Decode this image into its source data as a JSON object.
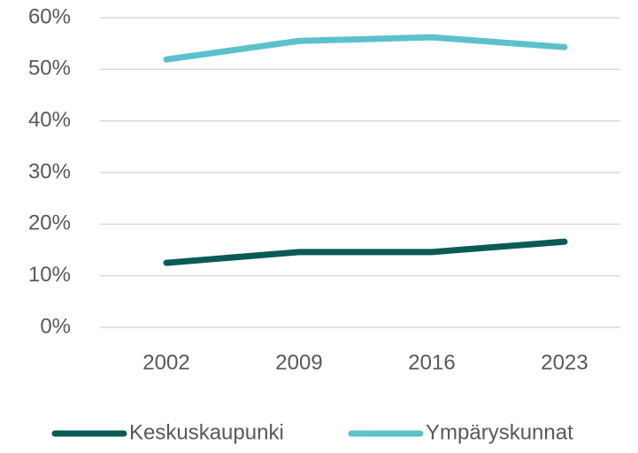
{
  "chart_data": {
    "type": "line",
    "categories": [
      "2002",
      "2009",
      "2016",
      "2023"
    ],
    "series": [
      {
        "name": "Keskuskaupunki",
        "color": "#0b5b55",
        "values": [
          12.5,
          14.6,
          14.6,
          16.6
        ]
      },
      {
        "name": "Ympäryskunnat",
        "color": "#5bc2cc",
        "values": [
          51.9,
          55.5,
          56.2,
          54.3
        ]
      }
    ],
    "ylim": [
      0,
      60
    ],
    "yticks": [
      {
        "value": 0,
        "label": "0%"
      },
      {
        "value": 10,
        "label": "10%"
      },
      {
        "value": 20,
        "label": "20%"
      },
      {
        "value": 30,
        "label": "30%"
      },
      {
        "value": 40,
        "label": "40%"
      },
      {
        "value": 50,
        "label": "50%"
      },
      {
        "value": 60,
        "label": "60%"
      }
    ],
    "grid": true,
    "legend": "bottom"
  }
}
